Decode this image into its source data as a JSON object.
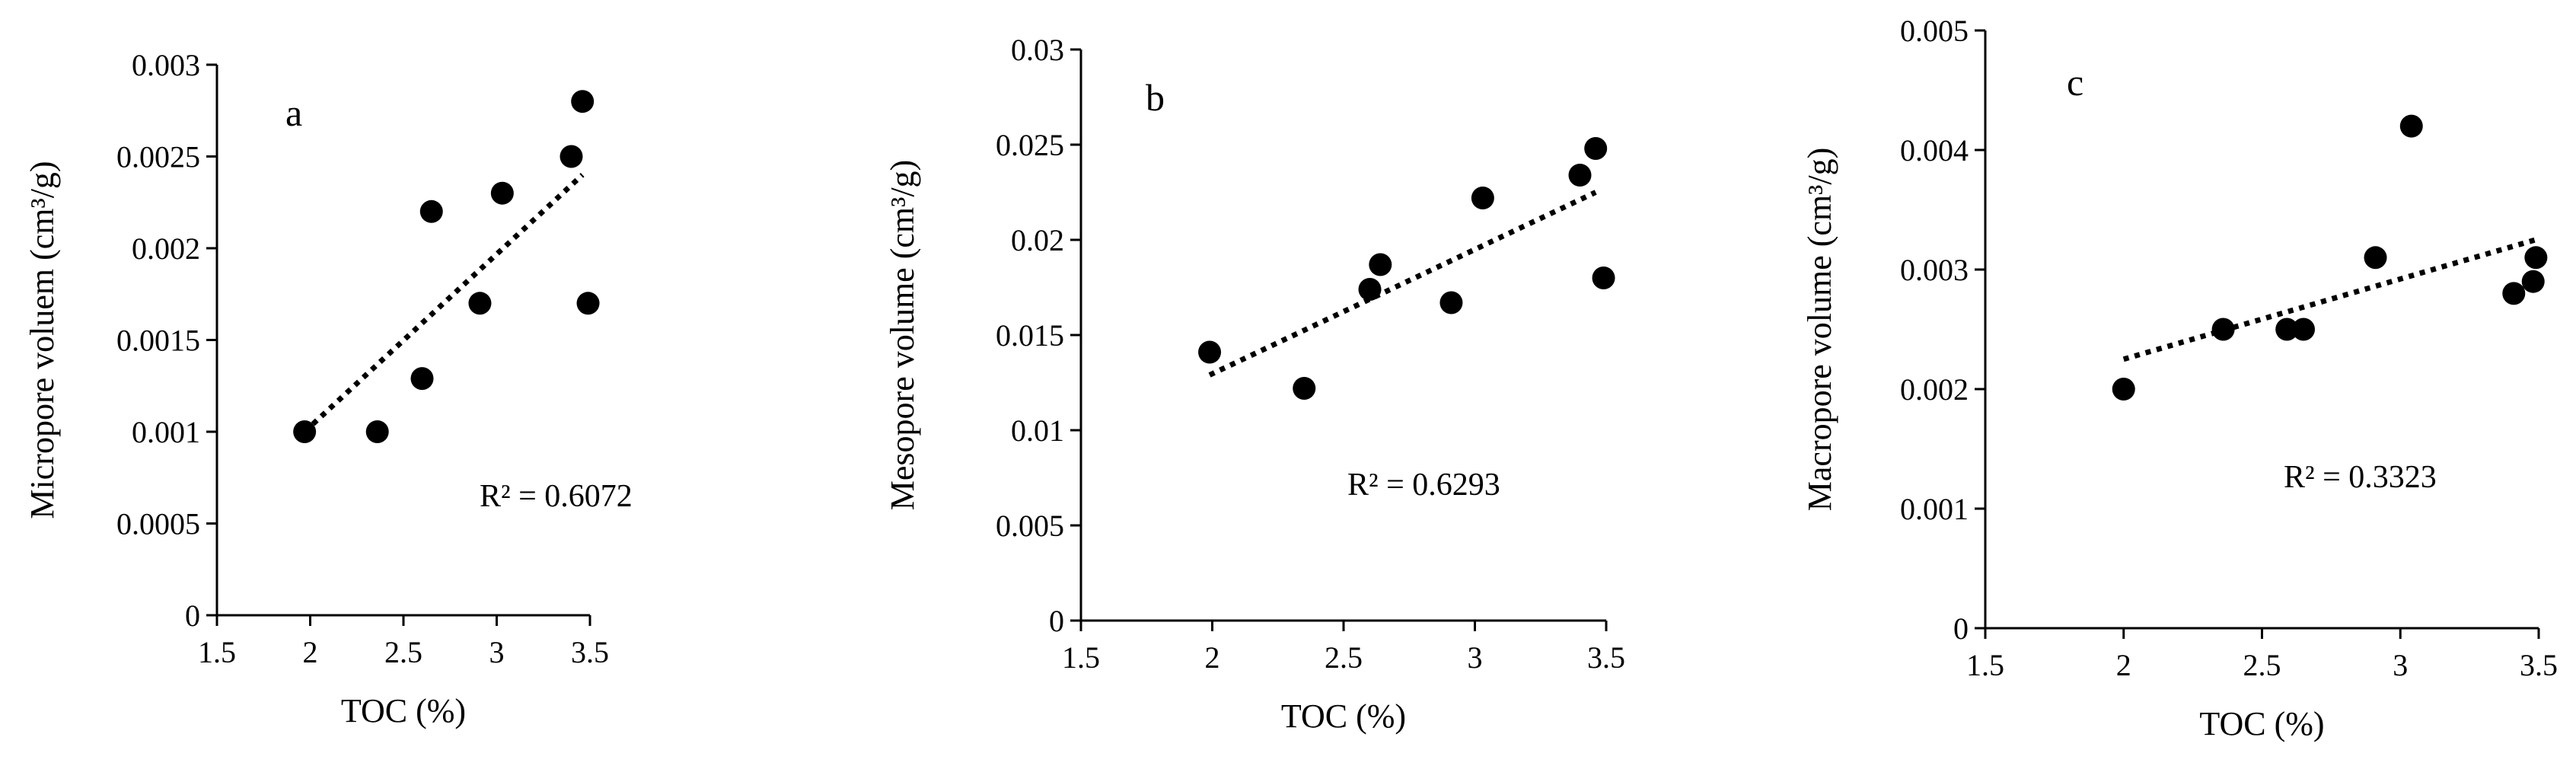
{
  "chart_data": [
    {
      "type": "scatter",
      "panel_label": "a",
      "xlabel": "TOC (%)",
      "ylabel": "Micropore voluem (cm³/g)",
      "xlim": [
        1.5,
        3.5
      ],
      "ylim": [
        0,
        0.003
      ],
      "xticks": [
        "1.5",
        "2",
        "2.5",
        "3",
        "3.5"
      ],
      "yticks": [
        "0",
        "0.0005",
        "0.001",
        "0.0015",
        "0.002",
        "0.0025",
        "0.003"
      ],
      "grid": false,
      "points": [
        {
          "x": 1.97,
          "y": 0.001
        },
        {
          "x": 2.36,
          "y": 0.001
        },
        {
          "x": 2.6,
          "y": 0.00129
        },
        {
          "x": 2.65,
          "y": 0.0022
        },
        {
          "x": 2.91,
          "y": 0.0017
        },
        {
          "x": 3.03,
          "y": 0.0023
        },
        {
          "x": 3.4,
          "y": 0.0025
        },
        {
          "x": 3.46,
          "y": 0.0028
        },
        {
          "x": 3.49,
          "y": 0.0017
        }
      ],
      "trendline": {
        "style": "dotted",
        "x": [
          1.97,
          3.46
        ],
        "y": [
          0.001,
          0.0024
        ]
      },
      "annotation": "R² = 0.6072"
    },
    {
      "type": "scatter",
      "panel_label": "b",
      "xlabel": "TOC (%)",
      "ylabel": "Mesopore volume (cm³/g)",
      "xlim": [
        1.5,
        3.5
      ],
      "ylim": [
        0,
        0.03
      ],
      "xticks": [
        "1.5",
        "2",
        "2.5",
        "3",
        "3.5"
      ],
      "yticks": [
        "0",
        "0.005",
        "0.01",
        "0.015",
        "0.02",
        "0.025",
        "0.03"
      ],
      "grid": false,
      "points": [
        {
          "x": 1.99,
          "y": 0.0141
        },
        {
          "x": 2.35,
          "y": 0.0122
        },
        {
          "x": 2.6,
          "y": 0.0174
        },
        {
          "x": 2.64,
          "y": 0.0187
        },
        {
          "x": 2.91,
          "y": 0.0167
        },
        {
          "x": 3.03,
          "y": 0.0222
        },
        {
          "x": 3.4,
          "y": 0.0234
        },
        {
          "x": 3.46,
          "y": 0.0248
        },
        {
          "x": 3.49,
          "y": 0.018
        }
      ],
      "trendline": {
        "style": "dotted",
        "x": [
          1.99,
          3.46
        ],
        "y": [
          0.0129,
          0.0225
        ]
      },
      "annotation": "R² = 0.6293"
    },
    {
      "type": "scatter",
      "panel_label": "c",
      "xlabel": "TOC (%)",
      "ylabel": "Macropore volume (cm³/g)",
      "xlim": [
        1.5,
        3.5
      ],
      "ylim": [
        0,
        0.005
      ],
      "xticks": [
        "1.5",
        "2",
        "2.5",
        "3",
        "3.5"
      ],
      "yticks": [
        "0",
        "0.001",
        "0.002",
        "0.003",
        "0.004",
        "0.005"
      ],
      "grid": false,
      "points": [
        {
          "x": 2.0,
          "y": 0.002
        },
        {
          "x": 2.36,
          "y": 0.0025
        },
        {
          "x": 2.59,
          "y": 0.0025
        },
        {
          "x": 2.65,
          "y": 0.0025
        },
        {
          "x": 2.91,
          "y": 0.0031
        },
        {
          "x": 3.04,
          "y": 0.0042
        },
        {
          "x": 3.41,
          "y": 0.0028
        },
        {
          "x": 3.48,
          "y": 0.0029
        },
        {
          "x": 3.49,
          "y": 0.0031
        }
      ],
      "trendline": {
        "style": "dotted",
        "x": [
          2.0,
          3.49
        ],
        "y": [
          0.00225,
          0.00325
        ]
      },
      "annotation": "R² = 0.3323"
    }
  ]
}
